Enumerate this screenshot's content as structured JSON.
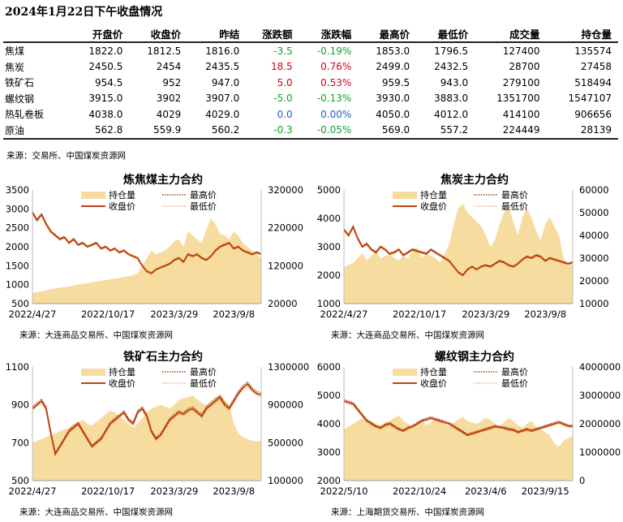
{
  "page_title": "2024年1月22日下午收盘情况",
  "table": {
    "headers": [
      "",
      "开盘价",
      "收盘价",
      "昨结",
      "涨跌额",
      "涨跌幅",
      "最高价",
      "最低价",
      "成交量",
      "持仓量"
    ],
    "rows": [
      {
        "name": "焦煤",
        "open": "1822.0",
        "close": "1812.5",
        "prev": "1816.0",
        "chg": "-3.5",
        "pct": "-0.19%",
        "high": "1853.0",
        "low": "1796.5",
        "vol": "127400",
        "oi": "135574",
        "dir": "down"
      },
      {
        "name": "焦炭",
        "open": "2450.5",
        "close": "2454",
        "prev": "2435.5",
        "chg": "18.5",
        "pct": "0.76%",
        "high": "2499.0",
        "low": "2432.5",
        "vol": "28700",
        "oi": "27458",
        "dir": "up"
      },
      {
        "name": "铁矿石",
        "open": "954.5",
        "close": "952",
        "prev": "947.0",
        "chg": "5.0",
        "pct": "0.53%",
        "high": "959.5",
        "low": "943.0",
        "vol": "279100",
        "oi": "518494",
        "dir": "up"
      },
      {
        "name": "螺纹钢",
        "open": "3915.0",
        "close": "3902",
        "prev": "3907.0",
        "chg": "-5.0",
        "pct": "-0.13%",
        "high": "3930.0",
        "low": "3883.0",
        "vol": "1351700",
        "oi": "1547107",
        "dir": "down"
      },
      {
        "name": "热轧卷板",
        "open": "4038.0",
        "close": "4029",
        "prev": "4029.0",
        "chg": "0.0",
        "pct": "0.00%",
        "high": "4050.0",
        "low": "4012.0",
        "vol": "414100",
        "oi": "906656",
        "dir": "flat"
      },
      {
        "name": "原油",
        "open": "562.8",
        "close": "559.9",
        "prev": "560.2",
        "chg": "-0.3",
        "pct": "-0.05%",
        "high": "569.0",
        "low": "557.2",
        "vol": "224449",
        "oi": "28139",
        "dir": "down"
      }
    ],
    "source": "来源：交易所、中国煤炭资源网"
  },
  "colors": {
    "oi_fill": "#f7dca0",
    "close": "#c1440e",
    "high": "#7a2a00",
    "low": "#f0a060",
    "up": "#d0021b",
    "down": "#12a12a",
    "flat": "#1f5fbf"
  },
  "chart_data": [
    {
      "type": "line",
      "title": "炼焦煤主力合约",
      "legend": [
        "持仓量",
        "最高价",
        "收盘价",
        "最低价"
      ],
      "x_ticks": [
        "2022/4/27",
        "2022/10/17",
        "2023/3/29",
        "2023/9/8"
      ],
      "ylim": [
        500,
        3500
      ],
      "y_ticks": [
        500,
        1000,
        1500,
        2000,
        2500,
        3000,
        3500
      ],
      "y2lim": [
        20000,
        320000
      ],
      "y2_ticks": [
        20000,
        120000,
        220000,
        320000
      ],
      "series": [
        {
          "name": "收盘价",
          "axis": "left",
          "values": [
            2900,
            2700,
            2850,
            2600,
            2400,
            2300,
            2200,
            2250,
            2100,
            2200,
            2050,
            2100,
            2000,
            2050,
            2100,
            1950,
            2000,
            1900,
            1950,
            1850,
            1900,
            1800,
            1750,
            1700,
            1500,
            1350,
            1300,
            1400,
            1450,
            1500,
            1550,
            1650,
            1700,
            1600,
            1800,
            1750,
            1800,
            1700,
            1650,
            1750,
            1900,
            2000,
            2050,
            2100,
            1950,
            2000,
            1900,
            1850,
            1800,
            1850,
            1810
          ]
        },
        {
          "name": "持仓量",
          "axis": "right",
          "values": [
            48000,
            50000,
            52000,
            55000,
            58000,
            60000,
            62000,
            63000,
            65000,
            68000,
            70000,
            72000,
            74000,
            76000,
            78000,
            80000,
            82000,
            84000,
            86000,
            88000,
            90000,
            92000,
            95000,
            100000,
            120000,
            140000,
            160000,
            150000,
            155000,
            160000,
            170000,
            185000,
            190000,
            170000,
            210000,
            200000,
            190000,
            180000,
            215000,
            245000,
            230000,
            205000,
            200000,
            190000,
            210000,
            200000,
            180000,
            170000,
            160000,
            150000,
            140000
          ]
        }
      ]
    },
    {
      "type": "line",
      "title": "焦炭主力合约",
      "legend": [
        "持仓量",
        "最高价",
        "收盘价",
        "最低价"
      ],
      "x_ticks": [
        "2022/4/27",
        "2022/10/17",
        "2023/3/29",
        "2023/9/8"
      ],
      "ylim": [
        1000,
        5000
      ],
      "y_ticks": [
        1000,
        2000,
        3000,
        4000,
        5000
      ],
      "y2lim": [
        10000,
        60000
      ],
      "y2_ticks": [
        10000,
        20000,
        30000,
        40000,
        50000,
        60000
      ],
      "series": [
        {
          "name": "收盘价",
          "axis": "left",
          "values": [
            3600,
            3400,
            3700,
            3300,
            3000,
            3100,
            2900,
            2800,
            3000,
            2900,
            2750,
            2800,
            2900,
            2700,
            2800,
            2900,
            2850,
            2800,
            2750,
            2900,
            2800,
            2700,
            2600,
            2500,
            2300,
            2100,
            2000,
            2200,
            2300,
            2200,
            2300,
            2350,
            2300,
            2400,
            2500,
            2450,
            2350,
            2300,
            2400,
            2550,
            2650,
            2600,
            2700,
            2650,
            2500,
            2600,
            2550,
            2500,
            2450,
            2400,
            2454
          ]
        },
        {
          "name": "持仓量",
          "axis": "right",
          "values": [
            26000,
            27000,
            28000,
            30000,
            32000,
            29000,
            31000,
            33000,
            30000,
            31000,
            32000,
            30000,
            29000,
            31000,
            30000,
            33000,
            35000,
            30000,
            32000,
            31000,
            30000,
            28000,
            32000,
            36000,
            45000,
            52000,
            54000,
            50000,
            48000,
            46000,
            44000,
            40000,
            35000,
            38000,
            45000,
            50000,
            53000,
            46000,
            40000,
            48000,
            52000,
            48000,
            42000,
            38000,
            45000,
            48000,
            44000,
            40000,
            30000,
            27000,
            27458
          ]
        }
      ]
    },
    {
      "type": "line",
      "title": "铁矿石主力合约",
      "legend": [
        "持仓量",
        "最高价",
        "收盘价",
        "最低价"
      ],
      "x_ticks": [
        "2022/4/27",
        "2022/10/17",
        "2023/3/29",
        "2023/9/8"
      ],
      "ylim": [
        500,
        1100
      ],
      "y_ticks": [
        500,
        700,
        900,
        1100
      ],
      "y2lim": [
        100000,
        1300000
      ],
      "y2_ticks": [
        100000,
        500000,
        900000,
        1300000
      ],
      "series": [
        {
          "name": "收盘价",
          "axis": "left",
          "values": [
            880,
            900,
            920,
            880,
            750,
            640,
            680,
            720,
            760,
            780,
            800,
            760,
            720,
            680,
            700,
            720,
            760,
            800,
            820,
            840,
            860,
            820,
            800,
            860,
            880,
            840,
            760,
            720,
            740,
            780,
            820,
            840,
            860,
            850,
            870,
            880,
            860,
            840,
            880,
            900,
            920,
            940,
            900,
            880,
            920,
            960,
            990,
            1010,
            980,
            960,
            952
          ]
        },
        {
          "name": "持仓量",
          "axis": "right",
          "values": [
            500000,
            520000,
            540000,
            560000,
            580000,
            600000,
            620000,
            640000,
            660000,
            700000,
            720000,
            740000,
            700000,
            680000,
            720000,
            760000,
            800000,
            840000,
            820000,
            780000,
            740000,
            700000,
            660000,
            700000,
            760000,
            820000,
            860000,
            880000,
            900000,
            880000,
            860000,
            900000,
            950000,
            970000,
            980000,
            1000000,
            960000,
            920000,
            900000,
            940000,
            980000,
            1000000,
            950000,
            900000,
            700000,
            600000,
            560000,
            540000,
            520000,
            515000,
            518494
          ]
        }
      ]
    },
    {
      "type": "line",
      "title": "螺纹钢主力合约",
      "legend": [
        "持仓量",
        "最高价",
        "收盘价",
        "最低价"
      ],
      "x_ticks": [
        "2022/5/10",
        "2022/10/24",
        "2023/4/6",
        "2023/9/15"
      ],
      "ylim": [
        2000,
        6000
      ],
      "y_ticks": [
        2000,
        3000,
        4000,
        5000,
        6000
      ],
      "y2lim": [
        0,
        4000000
      ],
      "y2_ticks": [
        0,
        1000000,
        2000000,
        3000000,
        4000000
      ],
      "series": [
        {
          "name": "收盘价",
          "axis": "left",
          "values": [
            4800,
            4750,
            4700,
            4500,
            4300,
            4100,
            4000,
            3900,
            3850,
            3950,
            4000,
            3900,
            3800,
            3750,
            3850,
            3900,
            4000,
            4100,
            4150,
            4200,
            4150,
            4100,
            4050,
            4000,
            3900,
            3800,
            3700,
            3600,
            3650,
            3700,
            3750,
            3800,
            3850,
            3900,
            3880,
            3850,
            3800,
            3780,
            3700,
            3750,
            3800,
            3750,
            3800,
            3850,
            3900,
            3950,
            4000,
            4050,
            3980,
            3920,
            3902
          ]
        },
        {
          "name": "持仓量",
          "axis": "right",
          "values": [
            1800000,
            1900000,
            2000000,
            2100000,
            2200000,
            2150000,
            2100000,
            2000000,
            1950000,
            2050000,
            2100000,
            2200000,
            2300000,
            2100000,
            2000000,
            1900000,
            2000000,
            2100000,
            1950000,
            2050000,
            2150000,
            2100000,
            2000000,
            1900000,
            2050000,
            2150000,
            2250000,
            2100000,
            2050000,
            2000000,
            2100000,
            2200000,
            2150000,
            2000000,
            1900000,
            2050000,
            2200000,
            2100000,
            1950000,
            1850000,
            2000000,
            2100000,
            1900000,
            1800000,
            1700000,
            1600000,
            1300000,
            1200000,
            1400000,
            1500000,
            1547107
          ]
        }
      ]
    }
  ],
  "chart_sources": [
    "来源：大连商品交易所、中国煤炭资源网",
    "来源：大连商品交易所、中国煤炭资源网",
    "来源：大连商品交易所、中国煤炭资源网",
    "来源：上海期货交易所、中国煤炭资源网"
  ]
}
